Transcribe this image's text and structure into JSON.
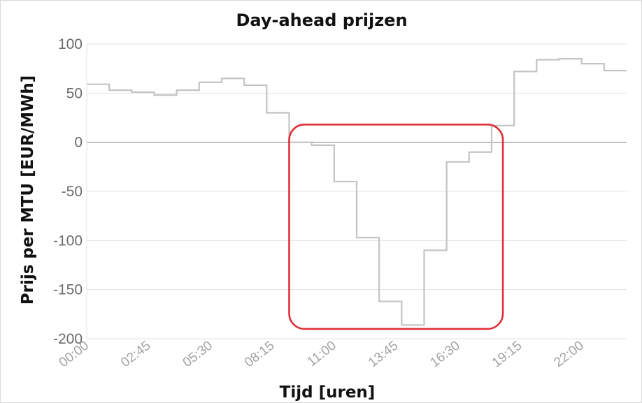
{
  "chart_data": {
    "type": "line",
    "step": true,
    "title": "Day-ahead prijzen",
    "xlabel": "Tijd [uren]",
    "ylabel": "Prijs per MTU [EUR/MWh]",
    "ylim": [
      -200,
      100
    ],
    "yticks": [
      100,
      50,
      0,
      -50,
      -100,
      -150,
      -200
    ],
    "xtick_labels": [
      "00:00",
      "02:45",
      "05:30",
      "08:15",
      "11:00",
      "13:45",
      "16:30",
      "19:15",
      "22:00"
    ],
    "x": [
      "00:00",
      "01:00",
      "02:00",
      "03:00",
      "04:00",
      "05:00",
      "06:00",
      "07:00",
      "08:00",
      "09:00",
      "10:00",
      "11:00",
      "12:00",
      "13:00",
      "14:00",
      "15:00",
      "16:00",
      "17:00",
      "18:00",
      "19:00",
      "20:00",
      "21:00",
      "22:00",
      "23:00"
    ],
    "series": [
      {
        "values": [
          59,
          53,
          51,
          48,
          53,
          61,
          65,
          58,
          30,
          0,
          -3,
          -40,
          -97,
          -162,
          -186,
          -110,
          -20,
          -10,
          17,
          72,
          84,
          85,
          80,
          73
        ]
      }
    ],
    "grid": true,
    "colors": {
      "line": "#c4c4c4",
      "grid": "#e3e3e3",
      "zero_line": "#8c8c8c",
      "highlight_box": "#e0303a"
    },
    "annotations": [
      {
        "type": "rounded-rectangle",
        "color": "#e0303a",
        "x_from": "09:00",
        "x_to": "18:30",
        "y_from": -190,
        "y_to": 18
      }
    ]
  }
}
